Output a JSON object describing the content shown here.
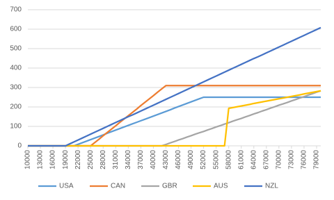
{
  "chart_data": {
    "type": "line",
    "x": [
      10000,
      11000,
      12000,
      13000,
      14000,
      15000,
      16000,
      17000,
      18000,
      19000,
      20000,
      21000,
      22000,
      23000,
      24000,
      25000,
      26000,
      27000,
      28000,
      29000,
      30000,
      31000,
      32000,
      33000,
      34000,
      35000,
      36000,
      37000,
      38000,
      39000,
      40000,
      41000,
      42000,
      43000,
      44000,
      45000,
      46000,
      47000,
      48000,
      49000,
      50000,
      51000,
      52000,
      53000,
      54000,
      55000,
      56000,
      57000,
      58000,
      59000,
      60000,
      61000,
      62000,
      63000,
      64000,
      65000,
      66000,
      67000,
      68000,
      69000,
      70000,
      71000,
      72000,
      73000,
      74000,
      75000,
      76000,
      77000,
      78000,
      79000,
      80000
    ],
    "xlim": [
      10000,
      80000
    ],
    "xticks": [
      10000,
      13000,
      16000,
      19000,
      22000,
      25000,
      28000,
      31000,
      34000,
      37000,
      40000,
      43000,
      46000,
      49000,
      52000,
      55000,
      58000,
      61000,
      64000,
      67000,
      70000,
      73000,
      76000,
      79000
    ],
    "ylim": [
      0,
      700
    ],
    "yticks": [
      0,
      100,
      200,
      300,
      400,
      500,
      600,
      700
    ],
    "grid": true,
    "legend": "bottom",
    "series": [
      {
        "name": "USA",
        "color": "#5b9bd5",
        "values": [
          0,
          0,
          0,
          0,
          0,
          0,
          0,
          0,
          0,
          0,
          0,
          0,
          8,
          16,
          24,
          32,
          40,
          48,
          56,
          65,
          73,
          81,
          89,
          97,
          105,
          113,
          121,
          129,
          137,
          145,
          153,
          161,
          169,
          177,
          185,
          194,
          202,
          210,
          218,
          226,
          234,
          242,
          250,
          250,
          250,
          250,
          250,
          250,
          250,
          250,
          250,
          250,
          250,
          250,
          250,
          250,
          250,
          250,
          250,
          250,
          250,
          250,
          250,
          250,
          250,
          250,
          250,
          250,
          250,
          250,
          250
        ]
      },
      {
        "name": "CAN",
        "color": "#ed7d31",
        "values": [
          0,
          0,
          0,
          0,
          0,
          0,
          0,
          0,
          0,
          0,
          0,
          0,
          0,
          0,
          0,
          0,
          17,
          34,
          52,
          69,
          86,
          103,
          121,
          138,
          155,
          172,
          189,
          207,
          224,
          241,
          258,
          276,
          293,
          310,
          310,
          310,
          310,
          310,
          310,
          310,
          310,
          310,
          310,
          310,
          310,
          310,
          310,
          310,
          310,
          310,
          310,
          310,
          310,
          310,
          310,
          310,
          310,
          310,
          310,
          310,
          310,
          310,
          310,
          310,
          310,
          310,
          310,
          310,
          310,
          310,
          310
        ]
      },
      {
        "name": "GBR",
        "color": "#a5a5a5",
        "values": [
          0,
          0,
          0,
          0,
          0,
          0,
          0,
          0,
          0,
          0,
          0,
          0,
          0,
          0,
          0,
          0,
          0,
          0,
          0,
          0,
          0,
          0,
          0,
          0,
          0,
          0,
          0,
          0,
          0,
          0,
          0,
          0,
          0,
          7,
          15,
          22,
          30,
          37,
          45,
          52,
          60,
          67,
          74,
          82,
          89,
          97,
          104,
          112,
          119,
          127,
          134,
          141,
          149,
          156,
          164,
          171,
          179,
          186,
          194,
          201,
          209,
          216,
          223,
          231,
          238,
          246,
          253,
          261,
          268,
          276,
          283
        ]
      },
      {
        "name": "AUS",
        "color": "#ffc000",
        "values": [
          0,
          0,
          0,
          0,
          0,
          0,
          0,
          0,
          0,
          0,
          0,
          0,
          0,
          0,
          0,
          0,
          0,
          0,
          0,
          0,
          0,
          0,
          0,
          0,
          0,
          0,
          0,
          0,
          0,
          0,
          0,
          0,
          0,
          0,
          0,
          0,
          0,
          0,
          0,
          0,
          0,
          0,
          0,
          0,
          0,
          0,
          0,
          0,
          193,
          197,
          201,
          205,
          209,
          213,
          218,
          222,
          226,
          230,
          234,
          238,
          242,
          246,
          250,
          254,
          258,
          262,
          267,
          271,
          275,
          279,
          283
        ]
      },
      {
        "name": "NZL",
        "color": "#4472c4",
        "values": [
          0,
          0,
          0,
          0,
          0,
          0,
          0,
          0,
          0,
          0,
          10,
          20,
          30,
          40,
          50,
          60,
          70,
          80,
          90,
          100,
          110,
          120,
          130,
          140,
          150,
          159,
          169,
          179,
          189,
          199,
          209,
          219,
          229,
          239,
          249,
          259,
          269,
          279,
          289,
          299,
          309,
          319,
          329,
          339,
          349,
          359,
          369,
          379,
          389,
          399,
          409,
          419,
          429,
          439,
          449,
          458,
          468,
          478,
          488,
          498,
          508,
          518,
          528,
          538,
          548,
          558,
          568,
          578,
          588,
          598,
          608
        ]
      }
    ]
  }
}
